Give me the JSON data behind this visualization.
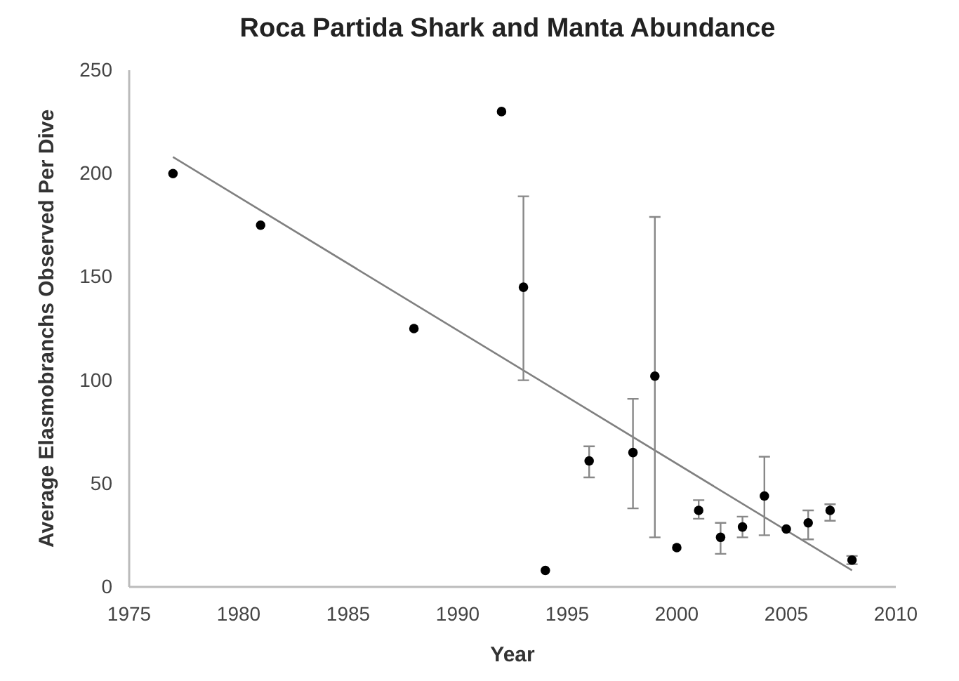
{
  "chart_data": {
    "type": "scatter",
    "title": "Roca Partida Shark and Manta Abundance",
    "xlabel": "Year",
    "ylabel": "Average Elasmobranchs Observed Per Dive",
    "xlim": [
      1975,
      2010
    ],
    "xticks": [
      1975,
      1980,
      1985,
      1990,
      1995,
      2000,
      2005,
      2010
    ],
    "ylim": [
      0,
      250
    ],
    "yticks": [
      0,
      50,
      100,
      150,
      200,
      250
    ],
    "grid": false,
    "series": [
      {
        "marker": "circle",
        "color": "#000000",
        "x": [
          1977,
          1981,
          1988,
          1992,
          1993,
          1994,
          1996,
          1998,
          1999,
          2000,
          2001,
          2002,
          2003,
          2004,
          2005,
          2006,
          2007,
          2008
        ],
        "values": [
          200,
          175,
          125,
          230,
          145,
          8,
          61,
          65,
          102,
          19,
          37,
          24,
          29,
          44,
          28,
          31,
          37,
          13
        ],
        "errors": [
          null,
          null,
          null,
          null,
          [
            100,
            189
          ],
          null,
          [
            53,
            68
          ],
          [
            38,
            91
          ],
          [
            24,
            179
          ],
          null,
          [
            33,
            42
          ],
          [
            16,
            31
          ],
          [
            24,
            34
          ],
          [
            25,
            63
          ],
          null,
          [
            23,
            37
          ],
          [
            32,
            40
          ],
          [
            11,
            15
          ]
        ]
      },
      {
        "type": "line",
        "marker": "none",
        "color": "#808080",
        "line_style": "solid",
        "x": [
          1977,
          2008
        ],
        "values": [
          208,
          8
        ]
      }
    ]
  }
}
